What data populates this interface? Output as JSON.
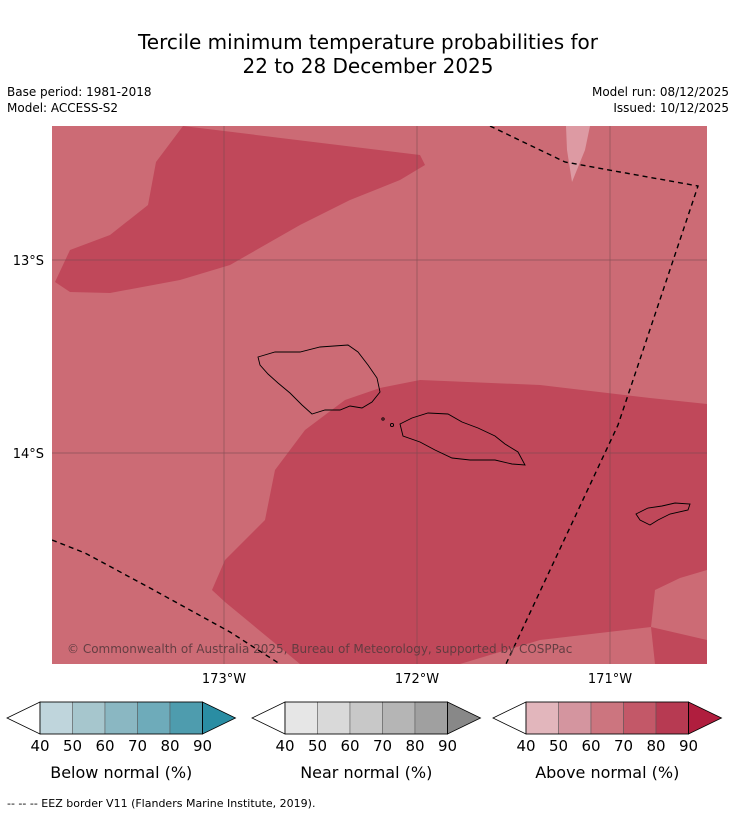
{
  "title_line1": "Tercile minimum temperature probabilities for",
  "title_line2": "22 to 28 December 2025",
  "meta": {
    "base_period": "Base period: 1981-2018",
    "model": "Model: ACCESS-S2",
    "model_run": "Model run: 08/12/2025",
    "issued": "Issued: 10/12/2025"
  },
  "map": {
    "lat_labels": [
      "13°S",
      "14°S"
    ],
    "lon_labels": [
      "173°W",
      "172°W",
      "171°W"
    ],
    "copyright": "© Commonwealth of Australia 2025, Bureau of Meteorology, supported by COSPPac"
  },
  "colors": {
    "above_60_70": "#cc6b75",
    "above_80_90": "#c0485a",
    "above_50_60": "#dd9aa3",
    "eez_line": "#000000"
  },
  "colorbars": [
    {
      "label": "Below normal (%)",
      "ticks": [
        "40",
        "50",
        "60",
        "70",
        "80",
        "90"
      ],
      "colors": [
        "#bfd5dc",
        "#a6c6cd",
        "#8ab7c2",
        "#6eabba",
        "#4e9cae",
        "#2a8da3"
      ]
    },
    {
      "label": "Near normal (%)",
      "ticks": [
        "40",
        "50",
        "60",
        "70",
        "80",
        "90"
      ],
      "colors": [
        "#e6e6e6",
        "#d9d9d9",
        "#c8c8c8",
        "#b5b5b5",
        "#a0a0a0",
        "#888888"
      ]
    },
    {
      "label": "Above normal (%)",
      "ticks": [
        "40",
        "50",
        "60",
        "70",
        "80",
        "90"
      ],
      "colors": [
        "#e2b6bc",
        "#d4959f",
        "#cc757f",
        "#c35868",
        "#b73a52",
        "#b01e3e"
      ]
    }
  ],
  "footer": "--  --  -- EEZ border V11 (Flanders Marine Institute, 2019)."
}
